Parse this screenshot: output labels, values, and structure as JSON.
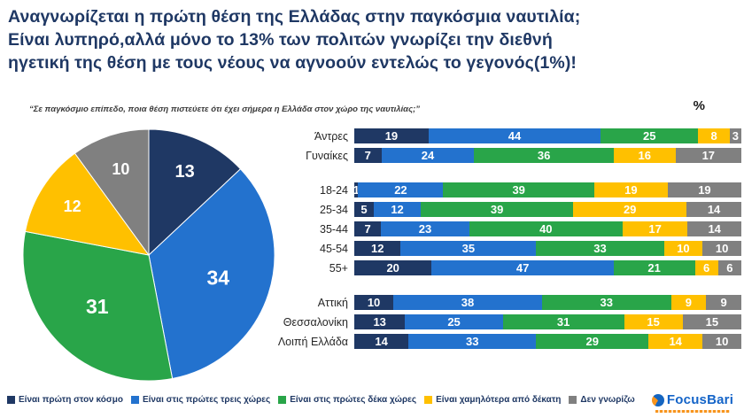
{
  "title": "Αναγνωρίζεται η πρώτη θέση της Ελλάδας στην παγκόσμια ναυτιλία;\nΕίναι λυπηρό,αλλά μόνο το 13% των πολιτών γνωρίζει την διεθνή\nηγετική της θέση με τους νέους να αγνοούν εντελώς το γεγονός(1%)!",
  "subtitle": "“Σε παγκόσμιο επίπεδο, ποια θέση πιστεύετε ότι έχει σήμερα η Ελλάδα στον χώρο της ναυτιλίας;”",
  "unit_label": "%",
  "chart_data": [
    {
      "type": "pie",
      "labels": [
        "Είναι πρώτη στον κόσμο",
        "Είναι στις πρώτες τρεις χώρες",
        "Είναι στις πρώτες δέκα χώρες",
        "Είναι χαμηλότερα από δέκατη",
        "Δεν γνωρίζω"
      ],
      "values": [
        13,
        34,
        31,
        12,
        10
      ],
      "colors": [
        "#1F3864",
        "#2372CE",
        "#29A549",
        "#FFC000",
        "#808080"
      ],
      "start_angle_deg": -90,
      "direction": "clockwise"
    },
    {
      "type": "bar",
      "orientation": "horizontal_stacked",
      "unit": "%",
      "xlim": [
        0,
        100
      ],
      "categories": [
        "Άντρες",
        "Γυναίκες",
        "18-24",
        "25-34",
        "35-44",
        "45-54",
        "55+",
        "Αττική",
        "Θεσσαλονίκη",
        "Λοιπή Ελλάδα"
      ],
      "category_groups": [
        [
          0,
          1
        ],
        [
          2,
          3,
          4,
          5,
          6
        ],
        [
          7,
          8,
          9
        ]
      ],
      "series": [
        {
          "name": "Είναι πρώτη στον κόσμο",
          "color": "#1F3864",
          "values": [
            19,
            7,
            1,
            5,
            7,
            12,
            20,
            10,
            13,
            14
          ]
        },
        {
          "name": "Είναι στις πρώτες τρεις χώρες",
          "color": "#2372CE",
          "values": [
            44,
            24,
            22,
            12,
            23,
            35,
            47,
            38,
            25,
            33
          ]
        },
        {
          "name": "Είναι στις πρώτες δέκα χώρες",
          "color": "#29A549",
          "values": [
            25,
            36,
            39,
            39,
            40,
            33,
            21,
            33,
            31,
            29
          ]
        },
        {
          "name": "Είναι χαμηλότερα από δέκατη",
          "color": "#FFC000",
          "values": [
            8,
            16,
            19,
            29,
            17,
            10,
            6,
            9,
            15,
            14
          ]
        },
        {
          "name": "Δεν γνωρίζω",
          "color": "#808080",
          "values": [
            3,
            17,
            19,
            14,
            14,
            10,
            6,
            9,
            15,
            10
          ]
        }
      ]
    }
  ],
  "legend": [
    "Είναι πρώτη στον κόσμο",
    "Είναι στις πρώτες τρεις χώρες",
    "Είναι στις πρώτες δέκα χώρες",
    "Είναι χαμηλότερα από δέκατη",
    "Δεν γνωρίζω"
  ],
  "logo": {
    "text": "FocusBari"
  }
}
